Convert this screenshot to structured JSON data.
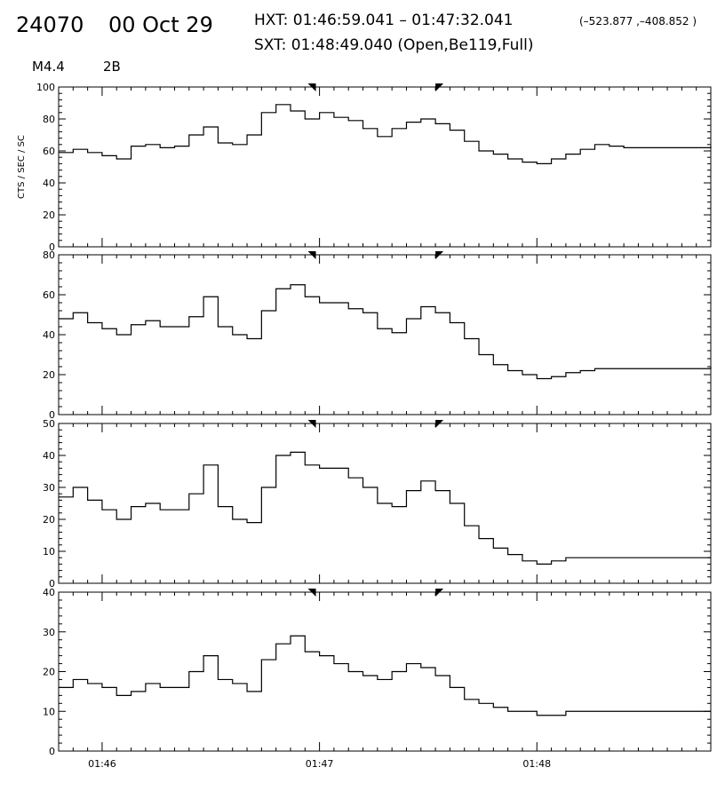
{
  "header": {
    "event_id": "24070",
    "date": "00 Oct 29",
    "hxt_line": "HXT: 01:46:59.041 – 01:47:32.041",
    "hxt_coords": "(–523.877 ,–408.852 )",
    "sxt_line": "SXT: 01:48:49.040 (Open,Be119,Full)",
    "flare_class": "M4.4",
    "optical_class": "2B"
  },
  "colors": {
    "line": "#000000",
    "background": "#ffffff"
  },
  "chart_data": [
    {
      "type": "line",
      "step": true,
      "ylabel": "CTS / SEC / SC",
      "ylim": [
        0,
        100
      ],
      "yticks": [
        0,
        20,
        40,
        60,
        80,
        100
      ],
      "series": [
        {
          "x": [
            "01:45:48",
            "01:45:52",
            "01:45:56",
            "01:46:00",
            "01:46:04",
            "01:46:08",
            "01:46:12",
            "01:46:16",
            "01:46:20",
            "01:46:24",
            "01:46:28",
            "01:46:32",
            "01:46:36",
            "01:46:40",
            "01:46:44",
            "01:46:48",
            "01:46:52",
            "01:46:56",
            "01:47:00",
            "01:47:04",
            "01:47:08",
            "01:47:12",
            "01:47:16",
            "01:47:20",
            "01:47:24",
            "01:47:28",
            "01:47:32",
            "01:47:36",
            "01:47:40",
            "01:47:44",
            "01:47:48",
            "01:47:52",
            "01:47:56",
            "01:48:00",
            "01:48:04",
            "01:48:08",
            "01:48:12",
            "01:48:16",
            "01:48:20",
            "01:48:24",
            "01:48:28",
            "01:48:32",
            "01:48:36",
            "01:48:40",
            "01:48:44",
            "01:48:48"
          ],
          "y": [
            59,
            61,
            59,
            57,
            55,
            63,
            64,
            62,
            63,
            70,
            75,
            65,
            64,
            70,
            84,
            89,
            85,
            80,
            84,
            81,
            79,
            74,
            69,
            74,
            78,
            80,
            77,
            73,
            66,
            60,
            58,
            55,
            53,
            52,
            55,
            58,
            61,
            64,
            63,
            62,
            62,
            62,
            62,
            62,
            62,
            63
          ]
        }
      ]
    },
    {
      "type": "line",
      "step": true,
      "ylabel": "",
      "ylim": [
        0,
        80
      ],
      "yticks": [
        0,
        20,
        40,
        60,
        80
      ],
      "series": [
        {
          "x": [
            "01:45:48",
            "01:45:52",
            "01:45:56",
            "01:46:00",
            "01:46:04",
            "01:46:08",
            "01:46:12",
            "01:46:16",
            "01:46:20",
            "01:46:24",
            "01:46:28",
            "01:46:32",
            "01:46:36",
            "01:46:40",
            "01:46:44",
            "01:46:48",
            "01:46:52",
            "01:46:56",
            "01:47:00",
            "01:47:04",
            "01:47:08",
            "01:47:12",
            "01:47:16",
            "01:47:20",
            "01:47:24",
            "01:47:28",
            "01:47:32",
            "01:47:36",
            "01:47:40",
            "01:47:44",
            "01:47:48",
            "01:47:52",
            "01:47:56",
            "01:48:00",
            "01:48:04",
            "01:48:08",
            "01:48:12",
            "01:48:16",
            "01:48:20",
            "01:48:24",
            "01:48:28",
            "01:48:32",
            "01:48:36",
            "01:48:40",
            "01:48:44",
            "01:48:48"
          ],
          "y": [
            48,
            51,
            46,
            43,
            40,
            45,
            47,
            44,
            44,
            49,
            59,
            44,
            40,
            38,
            52,
            63,
            65,
            59,
            56,
            56,
            53,
            51,
            43,
            41,
            48,
            54,
            51,
            46,
            38,
            30,
            25,
            22,
            20,
            18,
            19,
            21,
            22,
            23,
            23,
            23,
            23,
            23,
            23,
            23,
            23,
            24
          ]
        }
      ]
    },
    {
      "type": "line",
      "step": true,
      "ylabel": "",
      "ylim": [
        0,
        50
      ],
      "yticks": [
        0,
        10,
        20,
        30,
        40,
        50
      ],
      "series": [
        {
          "x": [
            "01:45:48",
            "01:45:52",
            "01:45:56",
            "01:46:00",
            "01:46:04",
            "01:46:08",
            "01:46:12",
            "01:46:16",
            "01:46:20",
            "01:46:24",
            "01:46:28",
            "01:46:32",
            "01:46:36",
            "01:46:40",
            "01:46:44",
            "01:46:48",
            "01:46:52",
            "01:46:56",
            "01:47:00",
            "01:47:04",
            "01:47:08",
            "01:47:12",
            "01:47:16",
            "01:47:20",
            "01:47:24",
            "01:47:28",
            "01:47:32",
            "01:47:36",
            "01:47:40",
            "01:47:44",
            "01:47:48",
            "01:47:52",
            "01:47:56",
            "01:48:00",
            "01:48:04",
            "01:48:08",
            "01:48:12",
            "01:48:16",
            "01:48:20",
            "01:48:24",
            "01:48:28",
            "01:48:32",
            "01:48:36",
            "01:48:40",
            "01:48:44",
            "01:48:48"
          ],
          "y": [
            27,
            30,
            26,
            23,
            20,
            24,
            25,
            23,
            23,
            28,
            37,
            24,
            20,
            19,
            30,
            40,
            41,
            37,
            36,
            36,
            33,
            30,
            25,
            24,
            29,
            32,
            29,
            25,
            18,
            14,
            11,
            9,
            7,
            6,
            7,
            8,
            8,
            8,
            8,
            8,
            8,
            8,
            8,
            8,
            8,
            8
          ]
        }
      ]
    },
    {
      "type": "line",
      "step": true,
      "ylabel": "",
      "ylim": [
        0,
        40
      ],
      "yticks": [
        0,
        10,
        20,
        30,
        40
      ],
      "xlabel_ticks": [
        "01:46",
        "01:47",
        "01:48"
      ],
      "series": [
        {
          "x": [
            "01:45:48",
            "01:45:52",
            "01:45:56",
            "01:46:00",
            "01:46:04",
            "01:46:08",
            "01:46:12",
            "01:46:16",
            "01:46:20",
            "01:46:24",
            "01:46:28",
            "01:46:32",
            "01:46:36",
            "01:46:40",
            "01:46:44",
            "01:46:48",
            "01:46:52",
            "01:46:56",
            "01:47:00",
            "01:47:04",
            "01:47:08",
            "01:47:12",
            "01:47:16",
            "01:47:20",
            "01:47:24",
            "01:47:28",
            "01:47:32",
            "01:47:36",
            "01:47:40",
            "01:47:44",
            "01:47:48",
            "01:47:52",
            "01:47:56",
            "01:48:00",
            "01:48:04",
            "01:48:08",
            "01:48:12",
            "01:48:16",
            "01:48:20",
            "01:48:24",
            "01:48:28",
            "01:48:32",
            "01:48:36",
            "01:48:40",
            "01:48:44",
            "01:48:48"
          ],
          "y": [
            16,
            18,
            17,
            16,
            14,
            15,
            17,
            16,
            16,
            20,
            24,
            18,
            17,
            15,
            23,
            27,
            29,
            25,
            24,
            22,
            20,
            19,
            18,
            20,
            22,
            21,
            19,
            16,
            13,
            12,
            11,
            10,
            10,
            9,
            9,
            10,
            10,
            10,
            10,
            10,
            10,
            10,
            10,
            10,
            10,
            10
          ]
        }
      ]
    }
  ],
  "x_axis": {
    "range": [
      "01:45:48",
      "01:48:48"
    ],
    "tick_labels": [
      "01:46",
      "01:47",
      "01:48"
    ],
    "markers": [
      "01:46:59",
      "01:47:32"
    ]
  }
}
